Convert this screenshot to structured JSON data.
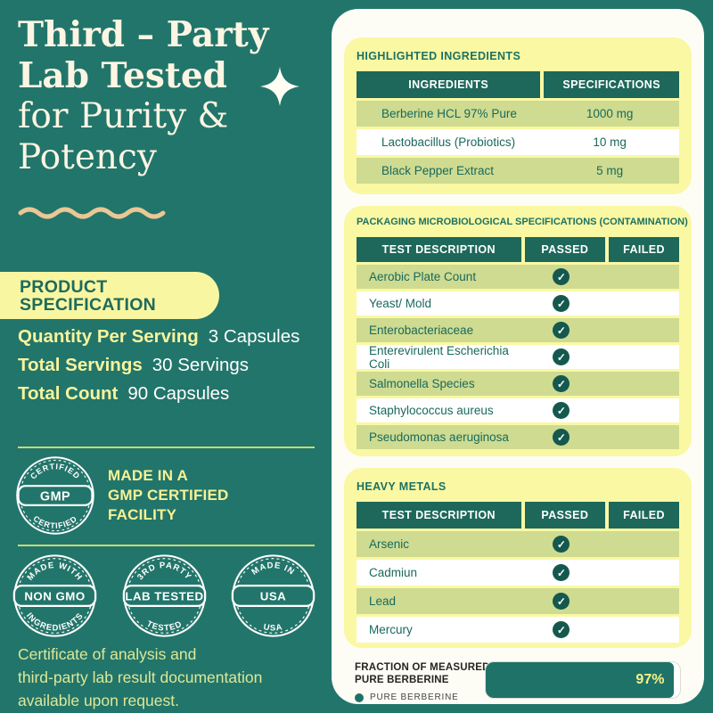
{
  "colors": {
    "background_teal": "#22756A",
    "header_teal": "#1D685B",
    "check_teal": "#14584E",
    "olive_row": "#CEDB90",
    "card_yellow": "#FAF8A3",
    "accent_yellow": "#F8F49D",
    "cream": "#FCF5E3",
    "sand_wave": "#EBC795",
    "panel_white": "#FDFDF6",
    "bar_teal": "#1F7268"
  },
  "hero": {
    "line1": "Third – Party",
    "line2": "Lab Tested",
    "line3": "for Purity &",
    "line4": "Potency"
  },
  "product_spec": {
    "badge_line1": "PRODUCT",
    "badge_line2": "SPECIFICATION",
    "rows": [
      {
        "label": "Quantity Per Serving",
        "value": "3 Capsules"
      },
      {
        "label": "Total Servings",
        "value": "30 Servings"
      },
      {
        "label": "Total Count",
        "value": "90 Capsules"
      }
    ]
  },
  "gmp": {
    "arc_top": "CERTIFIED",
    "center": "GMP",
    "arc_bottom": "CERTIFIED",
    "caption_line1": "MADE IN A",
    "caption_line2": "GMP CERTIFIED",
    "caption_line3": "FACILITY"
  },
  "stamps": [
    {
      "arc_top": "MADE WITH",
      "center": "NON GMO",
      "arc_bottom": "INGREDIENTS"
    },
    {
      "arc_top": "3RD PARTY",
      "center": "LAB TESTED",
      "arc_bottom": "TESTED"
    },
    {
      "arc_top": "MADE IN",
      "center": "USA",
      "arc_bottom": "USA"
    }
  ],
  "certificate_note": {
    "line1": "Certificate of analysis and",
    "line2": "third-party lab result documentation",
    "line3": "available upon request."
  },
  "ingredients_card": {
    "title": "HIGHLIGHTED INGREDIENTS",
    "headers": {
      "col1": "INGREDIENTS",
      "col2": "SPECIFICATIONS"
    },
    "rows": [
      {
        "name": "Berberine HCL 97% Pure",
        "spec": "1000 mg"
      },
      {
        "name": "Lactobacillus (Probiotics)",
        "spec": "10 mg"
      },
      {
        "name": "Black Pepper Extract",
        "spec": "5 mg"
      }
    ]
  },
  "micro_card": {
    "title": "PACKAGING MICROBIOLOGICAL SPECIFICATIONS (CONTAMINATION)",
    "headers": {
      "col1": "TEST DESCRIPTION",
      "col2": "PASSED",
      "col3": "FAILED"
    },
    "rows": [
      {
        "name": "Aerobic Plate Count",
        "passed": true
      },
      {
        "name": "Yeast/ Mold",
        "passed": true
      },
      {
        "name": "Enterobacteriaceae",
        "passed": true
      },
      {
        "name": "Enterevirulent Escherichia Coli",
        "passed": true
      },
      {
        "name": "Salmonella Species",
        "passed": true
      },
      {
        "name": "Staphylococcus aureus",
        "passed": true
      },
      {
        "name": "Pseudomonas aeruginosa",
        "passed": true
      }
    ]
  },
  "heavy_card": {
    "title": "HEAVY METALS",
    "headers": {
      "col1": "TEST DESCRIPTION",
      "col2": "PASSED",
      "col3": "FAILED"
    },
    "rows": [
      {
        "name": "Arsenic",
        "passed": true
      },
      {
        "name": "Cadmiun",
        "passed": true
      },
      {
        "name": "Lead",
        "passed": true
      },
      {
        "name": "Mercury",
        "passed": true
      }
    ]
  },
  "chart": {
    "title_line1": "FRACTION OF MEASURED",
    "title_line2": "PURE BERBERINE",
    "legend": "PURE BERBERINE",
    "value": 97,
    "value_label": "97%"
  },
  "chart_data": {
    "type": "bar",
    "orientation": "horizontal",
    "title": "FRACTION OF MEASURED PURE BERBERINE",
    "categories": [
      "PURE BERBERINE"
    ],
    "values": [
      97
    ],
    "unit": "%",
    "xlim": [
      0,
      100
    ],
    "legend": [
      "PURE BERBERINE"
    ],
    "annotations": [
      "97%"
    ],
    "grid": false,
    "legend_position": "left"
  },
  "icons": {
    "check": "✓"
  }
}
